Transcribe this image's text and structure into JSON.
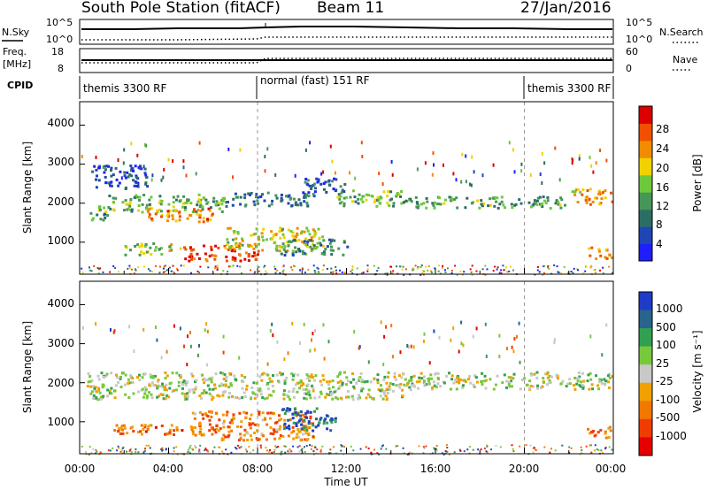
{
  "header": {
    "station": "South Pole Station (fitACF)",
    "beam": "Beam 11",
    "date": "27/Jan/2016"
  },
  "top_panels": {
    "nsky_label": "N.Sky",
    "nsky_ticks": [
      "10^5",
      "10^0"
    ],
    "nsearch_label": "N.Search",
    "nsearch_ticks": [
      "10^5",
      "10^0"
    ],
    "freq_label_1": "Freq.",
    "freq_label_2": "[MHz]",
    "freq_ticks": [
      "18",
      "8"
    ],
    "nave_label": "Nave",
    "nave_ticks": [
      "60",
      "0"
    ],
    "cpid_label": "CPID",
    "cpid_segments": [
      {
        "label": "themis 3300 RF",
        "start": 0,
        "end": 8
      },
      {
        "label": "normal (fast) 151 RF",
        "start": 8,
        "end": 20
      },
      {
        "label": "themis 3300 RF",
        "start": 20,
        "end": 24
      }
    ]
  },
  "chart_data": [
    {
      "type": "heatmap",
      "name": "power",
      "ylabel": "Slant Range [km]",
      "xlabel": "Time UT",
      "xlim": [
        0,
        24
      ],
      "ylim": [
        180,
        4600
      ],
      "yticks": [
        "1000",
        "2000",
        "3000",
        "4000"
      ],
      "colorbar_label": "Power [dB]",
      "colorbar_ticks": [
        "4",
        "8",
        "12",
        "16",
        "20",
        "24",
        "28"
      ],
      "colorbar_colors": [
        "#1e1eff",
        "#1e46b4",
        "#2d6e64",
        "#46965a",
        "#6ec83c",
        "#f0d200",
        "#f08c00",
        "#f05000",
        "#dc0000"
      ],
      "bands": [
        {
          "t0": 0.3,
          "t1": 1.2,
          "r0": 1550,
          "r1": 1800,
          "level": 0.35
        },
        {
          "t0": 0.8,
          "t1": 6.5,
          "r0": 1800,
          "r1": 2250,
          "level": 0.45
        },
        {
          "t0": 3.0,
          "t1": 6.0,
          "r0": 1550,
          "r1": 1900,
          "level": 0.75
        },
        {
          "t0": 6.5,
          "t1": 10.5,
          "r0": 1950,
          "r1": 2300,
          "level": 0.25
        },
        {
          "t0": 10.0,
          "t1": 12.0,
          "r0": 2300,
          "r1": 2700,
          "level": 0.2
        },
        {
          "t0": 11.5,
          "t1": 14.5,
          "r0": 1950,
          "r1": 2350,
          "level": 0.45
        },
        {
          "t0": 14.5,
          "t1": 22.0,
          "r0": 1900,
          "r1": 2200,
          "level": 0.4
        },
        {
          "t0": 22.0,
          "t1": 23.9,
          "r0": 2000,
          "r1": 2400,
          "level": 0.7
        },
        {
          "t0": 2.0,
          "t1": 4.5,
          "r0": 700,
          "r1": 1000,
          "level": 0.5
        },
        {
          "t0": 4.5,
          "t1": 8.0,
          "r0": 550,
          "r1": 950,
          "level": 0.9
        },
        {
          "t0": 6.5,
          "t1": 11.0,
          "r0": 800,
          "r1": 1400,
          "level": 0.6
        },
        {
          "t0": 9.0,
          "t1": 12.0,
          "r0": 700,
          "r1": 1100,
          "level": 0.3
        },
        {
          "t0": 22.8,
          "t1": 23.9,
          "r0": 600,
          "r1": 900,
          "level": 0.8
        },
        {
          "t0": 0.5,
          "t1": 3.0,
          "r0": 2400,
          "r1": 3000,
          "level": 0.15
        }
      ]
    },
    {
      "type": "heatmap",
      "name": "velocity",
      "ylabel": "Slant Range [km]",
      "xlabel": "Time UT",
      "xlim": [
        0,
        24
      ],
      "ylim": [
        180,
        4600
      ],
      "yticks": [
        "1000",
        "2000",
        "3000",
        "4000"
      ],
      "xticks": [
        "00:00",
        "04:00",
        "08:00",
        "12:00",
        "16:00",
        "20:00",
        "00:00"
      ],
      "colorbar_label": "Velocity [m s⁻¹]",
      "colorbar_ticks": [
        "1000",
        "500",
        "100",
        "25",
        "-25",
        "-100",
        "-500",
        "-1000"
      ],
      "colorbar_colors": [
        "#1e3cc8",
        "#28648c",
        "#32a050",
        "#78c83c",
        "#c8c8c8",
        "#f0a000",
        "#f07800",
        "#f03c00",
        "#e60000"
      ],
      "bands": [
        {
          "t0": 0.3,
          "t1": 14.5,
          "r0": 1600,
          "r1": 2300,
          "level": 0.45
        },
        {
          "t0": 14.5,
          "t1": 23.9,
          "r0": 1850,
          "r1": 2300,
          "level": 0.45
        },
        {
          "t0": 1.5,
          "t1": 6.0,
          "r0": 700,
          "r1": 950,
          "level": 0.75
        },
        {
          "t0": 5.0,
          "t1": 10.5,
          "r0": 550,
          "r1": 1300,
          "level": 0.7
        },
        {
          "t0": 9.0,
          "t1": 11.5,
          "r0": 800,
          "r1": 1400,
          "level": 0.15
        },
        {
          "t0": 22.7,
          "t1": 23.9,
          "r0": 600,
          "r1": 900,
          "level": 0.7
        }
      ]
    }
  ]
}
